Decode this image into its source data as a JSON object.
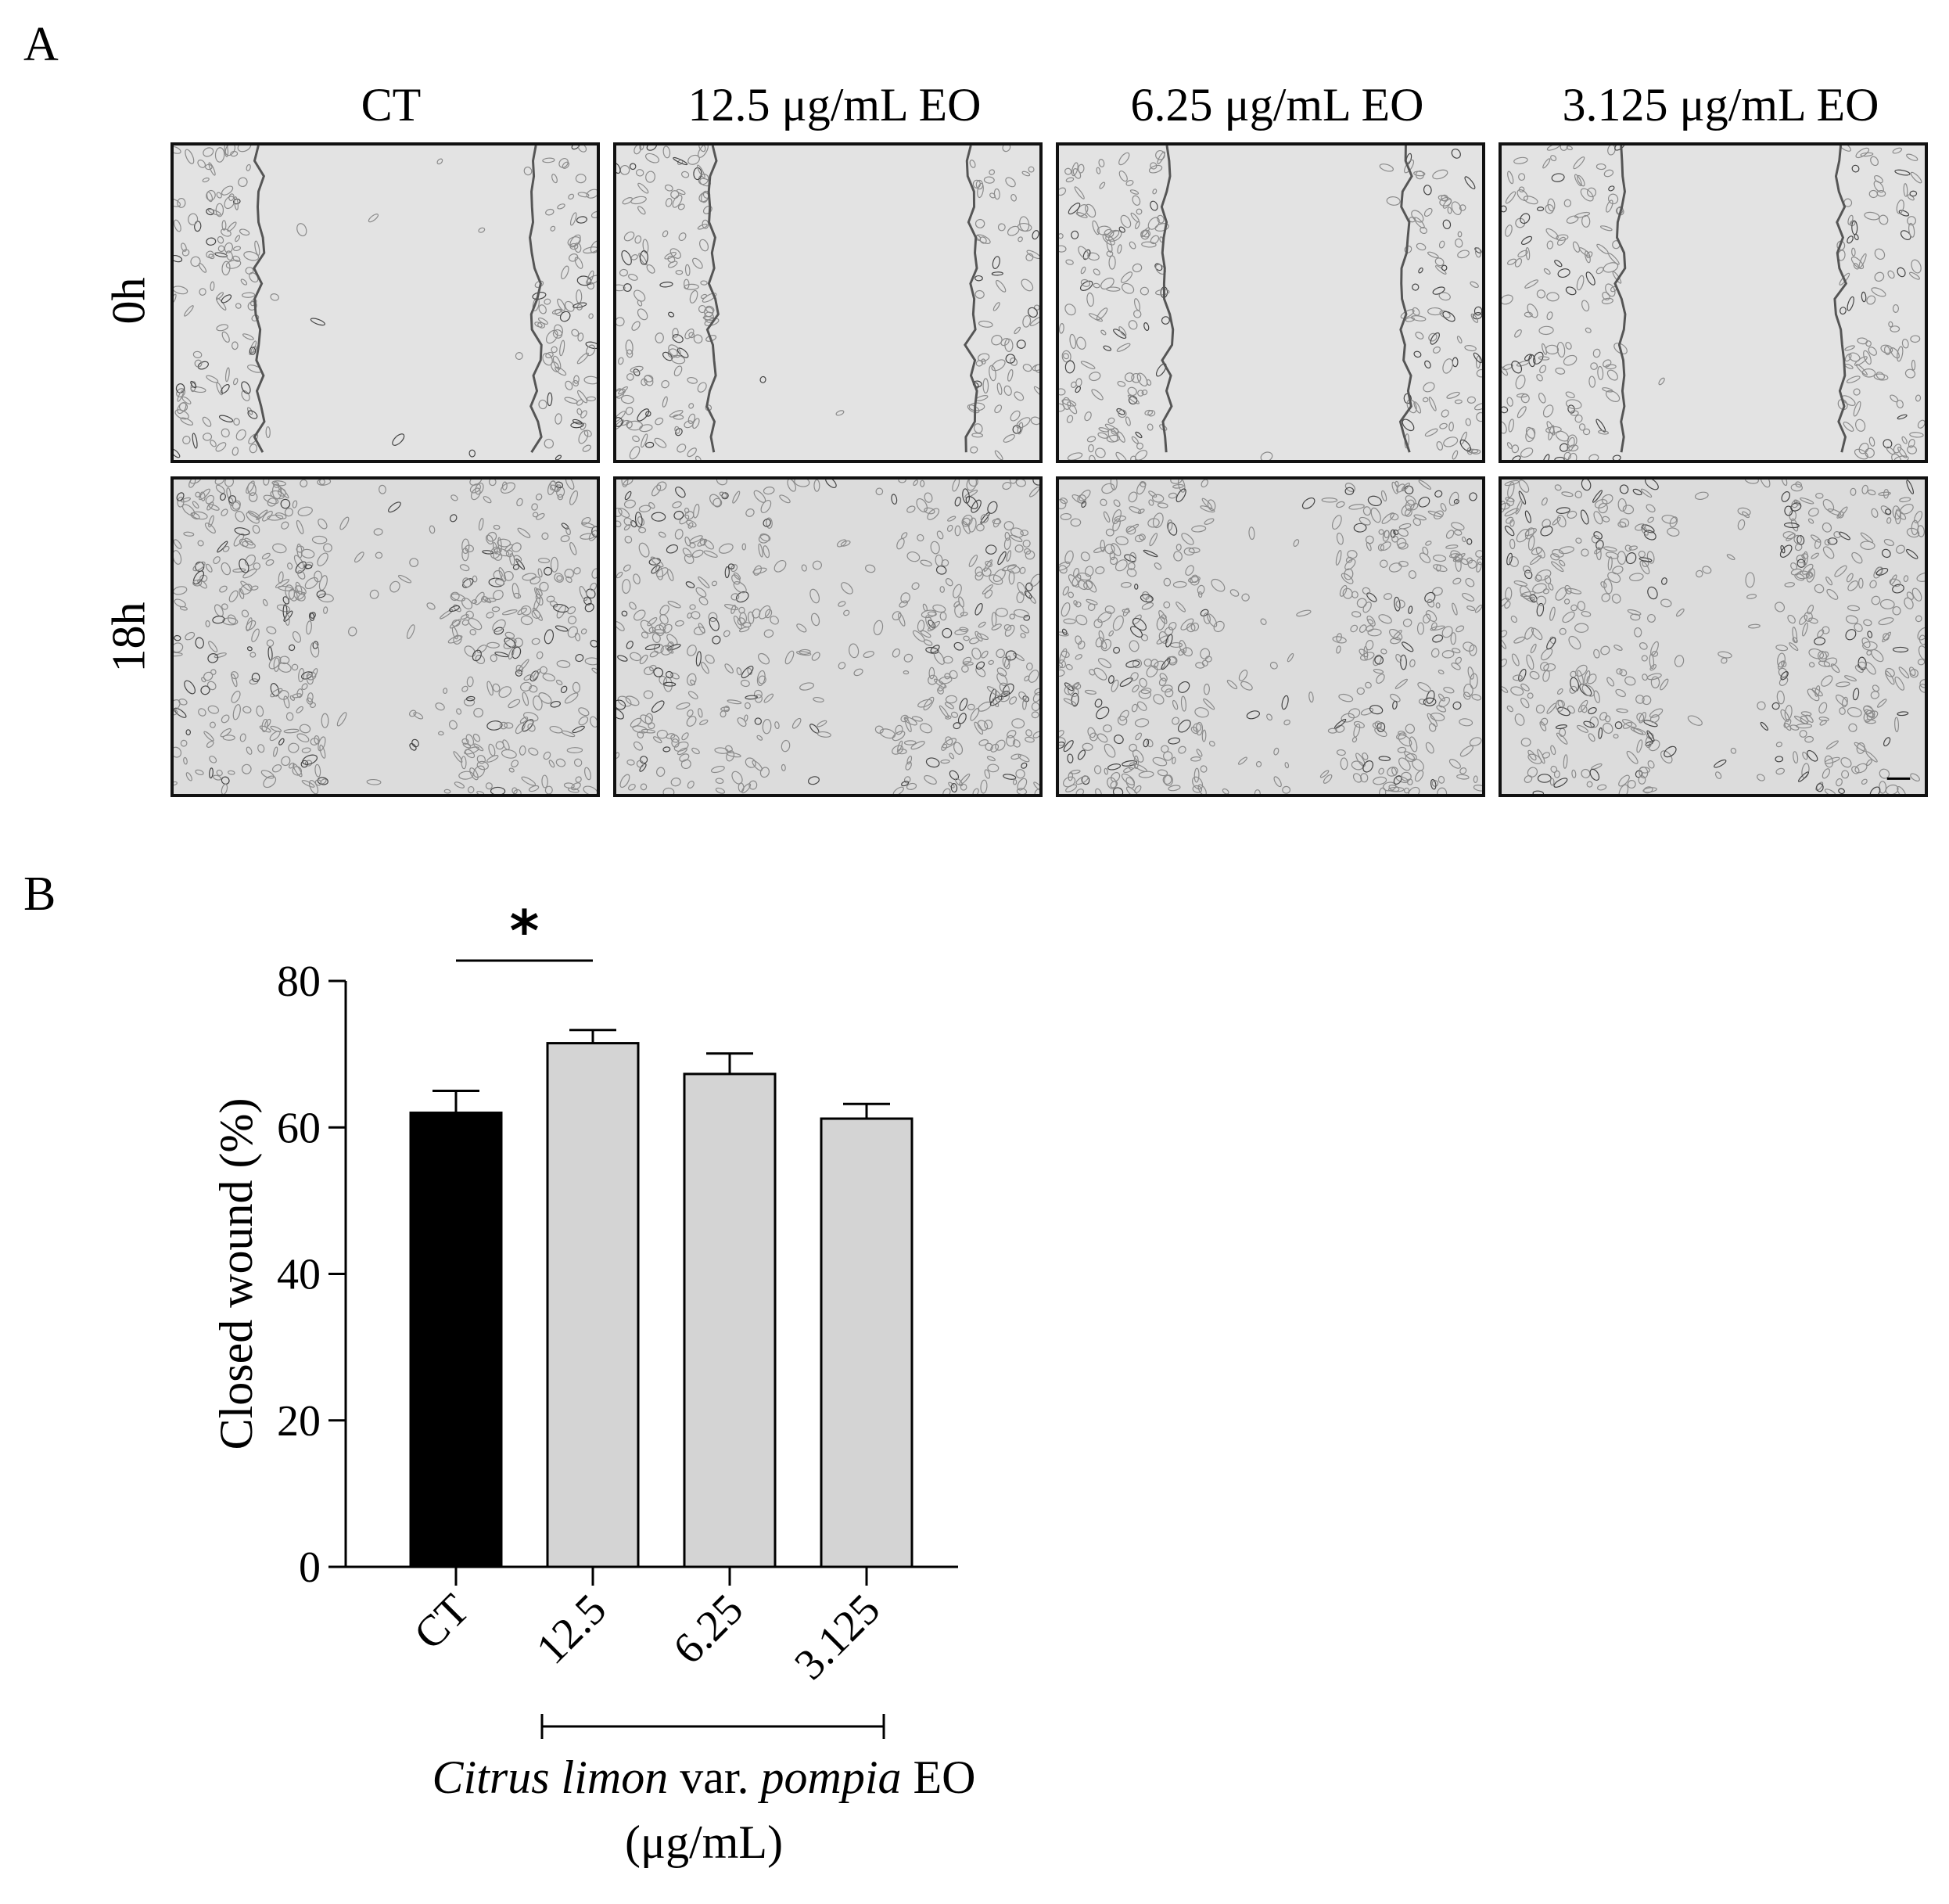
{
  "panel_a": {
    "letter": "A",
    "columns": [
      "CT",
      "12.5 μg/mL EO",
      "6.25 μg/mL EO",
      "3.125 μg/mL EO"
    ],
    "rows": [
      "0h",
      "18h"
    ]
  },
  "panel_b": {
    "letter": "B"
  },
  "chart_data": {
    "type": "bar",
    "categories": [
      "CT",
      "12.5",
      "6.25",
      "3.125"
    ],
    "values": [
      62,
      71.5,
      67.3,
      61.2
    ],
    "errors": [
      3,
      1.8,
      2.8,
      2
    ],
    "colors": [
      "#000000",
      "#d4d4d4",
      "#d4d4d4",
      "#d4d4d4"
    ],
    "ylabel": "Closed wound (%)",
    "ylim": [
      0,
      80
    ],
    "yticks": [
      0,
      20,
      40,
      60,
      80
    ],
    "xlabel_parts": [
      {
        "text": "Citrus limon",
        "italic": true
      },
      {
        "text": " var. ",
        "italic": false
      },
      {
        "text": "pompia",
        "italic": true
      },
      {
        "text": " EO",
        "italic": false
      }
    ],
    "xlabel_line2": "(μg/mL)",
    "significance": {
      "label": "*",
      "between": [
        "CT",
        "12.5"
      ]
    },
    "bracket_categories": [
      "12.5",
      "6.25",
      "3.125"
    ],
    "grid": false
  }
}
